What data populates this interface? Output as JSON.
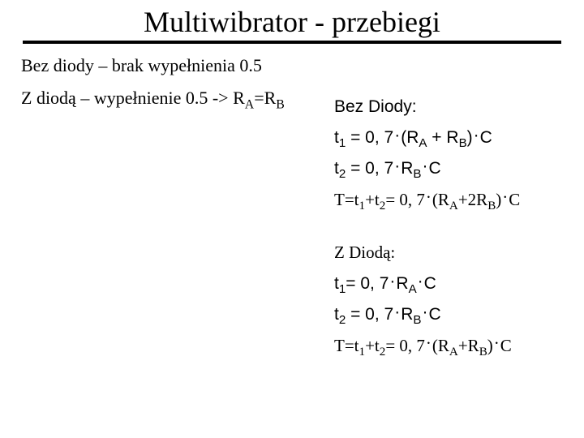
{
  "title": "Multiwibrator - przebiegi",
  "line1_pre": "Bez diody – brak wypełnienia 0.5",
  "line2_pre": "Z diodą – wypełnienie 0.5 -> R",
  "line2_sub1": "A",
  "line2_mid": "=R",
  "line2_sub2": "B",
  "section1_label": "Bez Diody:",
  "s1_eq1_a": "t",
  "s1_eq1_s1": "1",
  "s1_eq1_b": " = 0, 7",
  "s1_eq1_dot1": "·",
  "s1_eq1_c": "(R",
  "s1_eq1_s2": "A",
  "s1_eq1_d": " + R",
  "s1_eq1_s3": "B",
  "s1_eq1_e": ")",
  "s1_eq1_dot2": "·",
  "s1_eq1_f": "C",
  "s1_eq2_a": "t",
  "s1_eq2_s1": "2",
  "s1_eq2_b": " = 0, 7",
  "s1_eq2_dot1": "·",
  "s1_eq2_c": "R",
  "s1_eq2_s2": "B",
  "s1_eq2_dot2": "·",
  "s1_eq2_d": "C",
  "s1_eq3_a": "T=t",
  "s1_eq3_s1": "1",
  "s1_eq3_b": "+t",
  "s1_eq3_s2": "2",
  "s1_eq3_c": "= 0, 7",
  "s1_eq3_dot1": "·",
  "s1_eq3_d": "(R",
  "s1_eq3_s3": "A",
  "s1_eq3_e": "+2R",
  "s1_eq3_s4": "B",
  "s1_eq3_f": ")",
  "s1_eq3_dot2": "·",
  "s1_eq3_g": "C",
  "section2_label": "Z Diodą:",
  "s2_eq1_a": "t",
  "s2_eq1_s1": "1",
  "s2_eq1_b": "= 0, 7",
  "s2_eq1_dot1": "·",
  "s2_eq1_c": "R",
  "s2_eq1_s2": "A",
  "s2_eq1_dot2": "·",
  "s2_eq1_d": "C",
  "s2_eq2_a": "t",
  "s2_eq2_s1": "2",
  "s2_eq2_b": " = 0, 7",
  "s2_eq2_dot1": "·",
  "s2_eq2_c": "R",
  "s2_eq2_s2": "B",
  "s2_eq2_dot2": "·",
  "s2_eq2_d": "C",
  "s2_eq3_a": "T=t",
  "s2_eq3_s1": "1",
  "s2_eq3_b": "+t",
  "s2_eq3_s2": "2",
  "s2_eq3_c": "= 0, 7",
  "s2_eq3_dot1": "·",
  "s2_eq3_d": "(R",
  "s2_eq3_s3": "A",
  "s2_eq3_e": "+R",
  "s2_eq3_s4": "B",
  "s2_eq3_f": ")",
  "s2_eq3_dot2": "·",
  "s2_eq3_g": "C"
}
